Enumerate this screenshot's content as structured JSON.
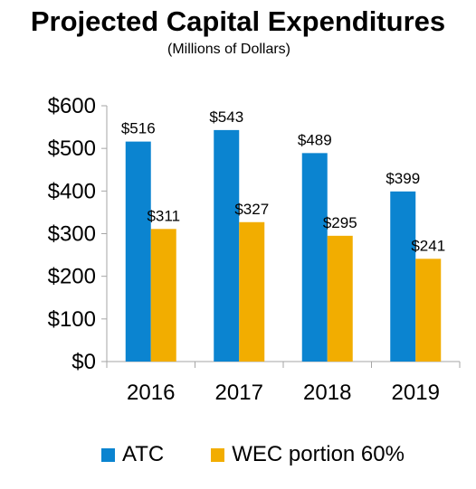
{
  "title": "Projected Capital Expenditures",
  "subtitle": "(Millions of Dollars)",
  "colors": {
    "atc": "#0b84d0",
    "wec": "#f2ad00",
    "axis": "#a6a6a6"
  },
  "chart_data": {
    "type": "bar",
    "title": "Projected Capital Expenditures",
    "subtitle": "(Millions of Dollars)",
    "categories": [
      "2016",
      "2017",
      "2018",
      "2019"
    ],
    "series": [
      {
        "name": "ATC",
        "values": [
          516,
          543,
          489,
          399
        ],
        "labels": [
          "$516",
          "$543",
          "$489",
          "$399"
        ]
      },
      {
        "name": "WEC portion 60%",
        "values": [
          311,
          327,
          295,
          241
        ],
        "labels": [
          "$311",
          "$327",
          "$295",
          "$241"
        ]
      }
    ],
    "ylim": [
      0,
      600
    ],
    "yticks": [
      0,
      100,
      200,
      300,
      400,
      500,
      600
    ],
    "ytick_labels": [
      "$0",
      "$100",
      "$200",
      "$300",
      "$400",
      "$500",
      "$600"
    ],
    "xlabel": "",
    "ylabel": "",
    "grid": false,
    "legend_position": "bottom"
  }
}
